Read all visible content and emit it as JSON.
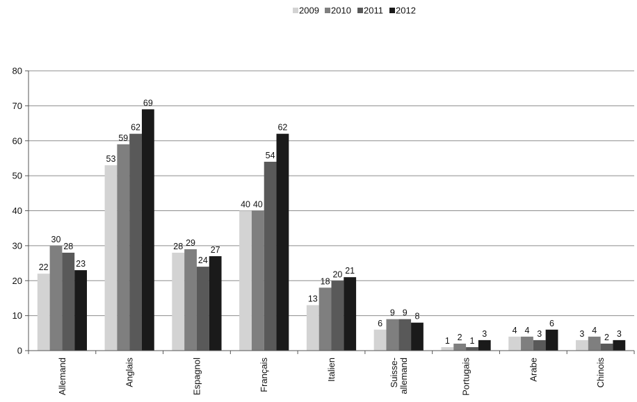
{
  "chart_data": {
    "type": "bar",
    "categories": [
      "Allemand",
      "Anglais",
      "Espagnol",
      "Français",
      "Italien",
      "Suisse-allemand",
      "Portugais",
      "Arabe",
      "Chinois"
    ],
    "category_label_lines": [
      [
        "Allemand"
      ],
      [
        "Anglais"
      ],
      [
        "Espagnol"
      ],
      [
        "Français"
      ],
      [
        "Italien"
      ],
      [
        "Suisse-",
        "allemand"
      ],
      [
        "Portugais"
      ],
      [
        "Arabe"
      ],
      [
        "Chinois"
      ]
    ],
    "series": [
      {
        "name": "2009",
        "color": "#d3d3d3",
        "values": [
          22,
          53,
          28,
          40,
          13,
          6,
          1,
          4,
          3
        ]
      },
      {
        "name": "2010",
        "color": "#7f7f7f",
        "values": [
          30,
          59,
          29,
          40,
          18,
          9,
          2,
          4,
          4
        ]
      },
      {
        "name": "2011",
        "color": "#595959",
        "values": [
          28,
          62,
          24,
          54,
          20,
          9,
          1,
          3,
          2
        ]
      },
      {
        "name": "2012",
        "color": "#1a1a1a",
        "values": [
          23,
          69,
          27,
          62,
          21,
          8,
          3,
          6,
          3
        ]
      }
    ],
    "ylim": [
      0,
      80
    ],
    "yticks": [
      0,
      10,
      20,
      30,
      40,
      50,
      60,
      70,
      80
    ],
    "grid": true,
    "legend_position": "top-center",
    "data_labels": true
  }
}
